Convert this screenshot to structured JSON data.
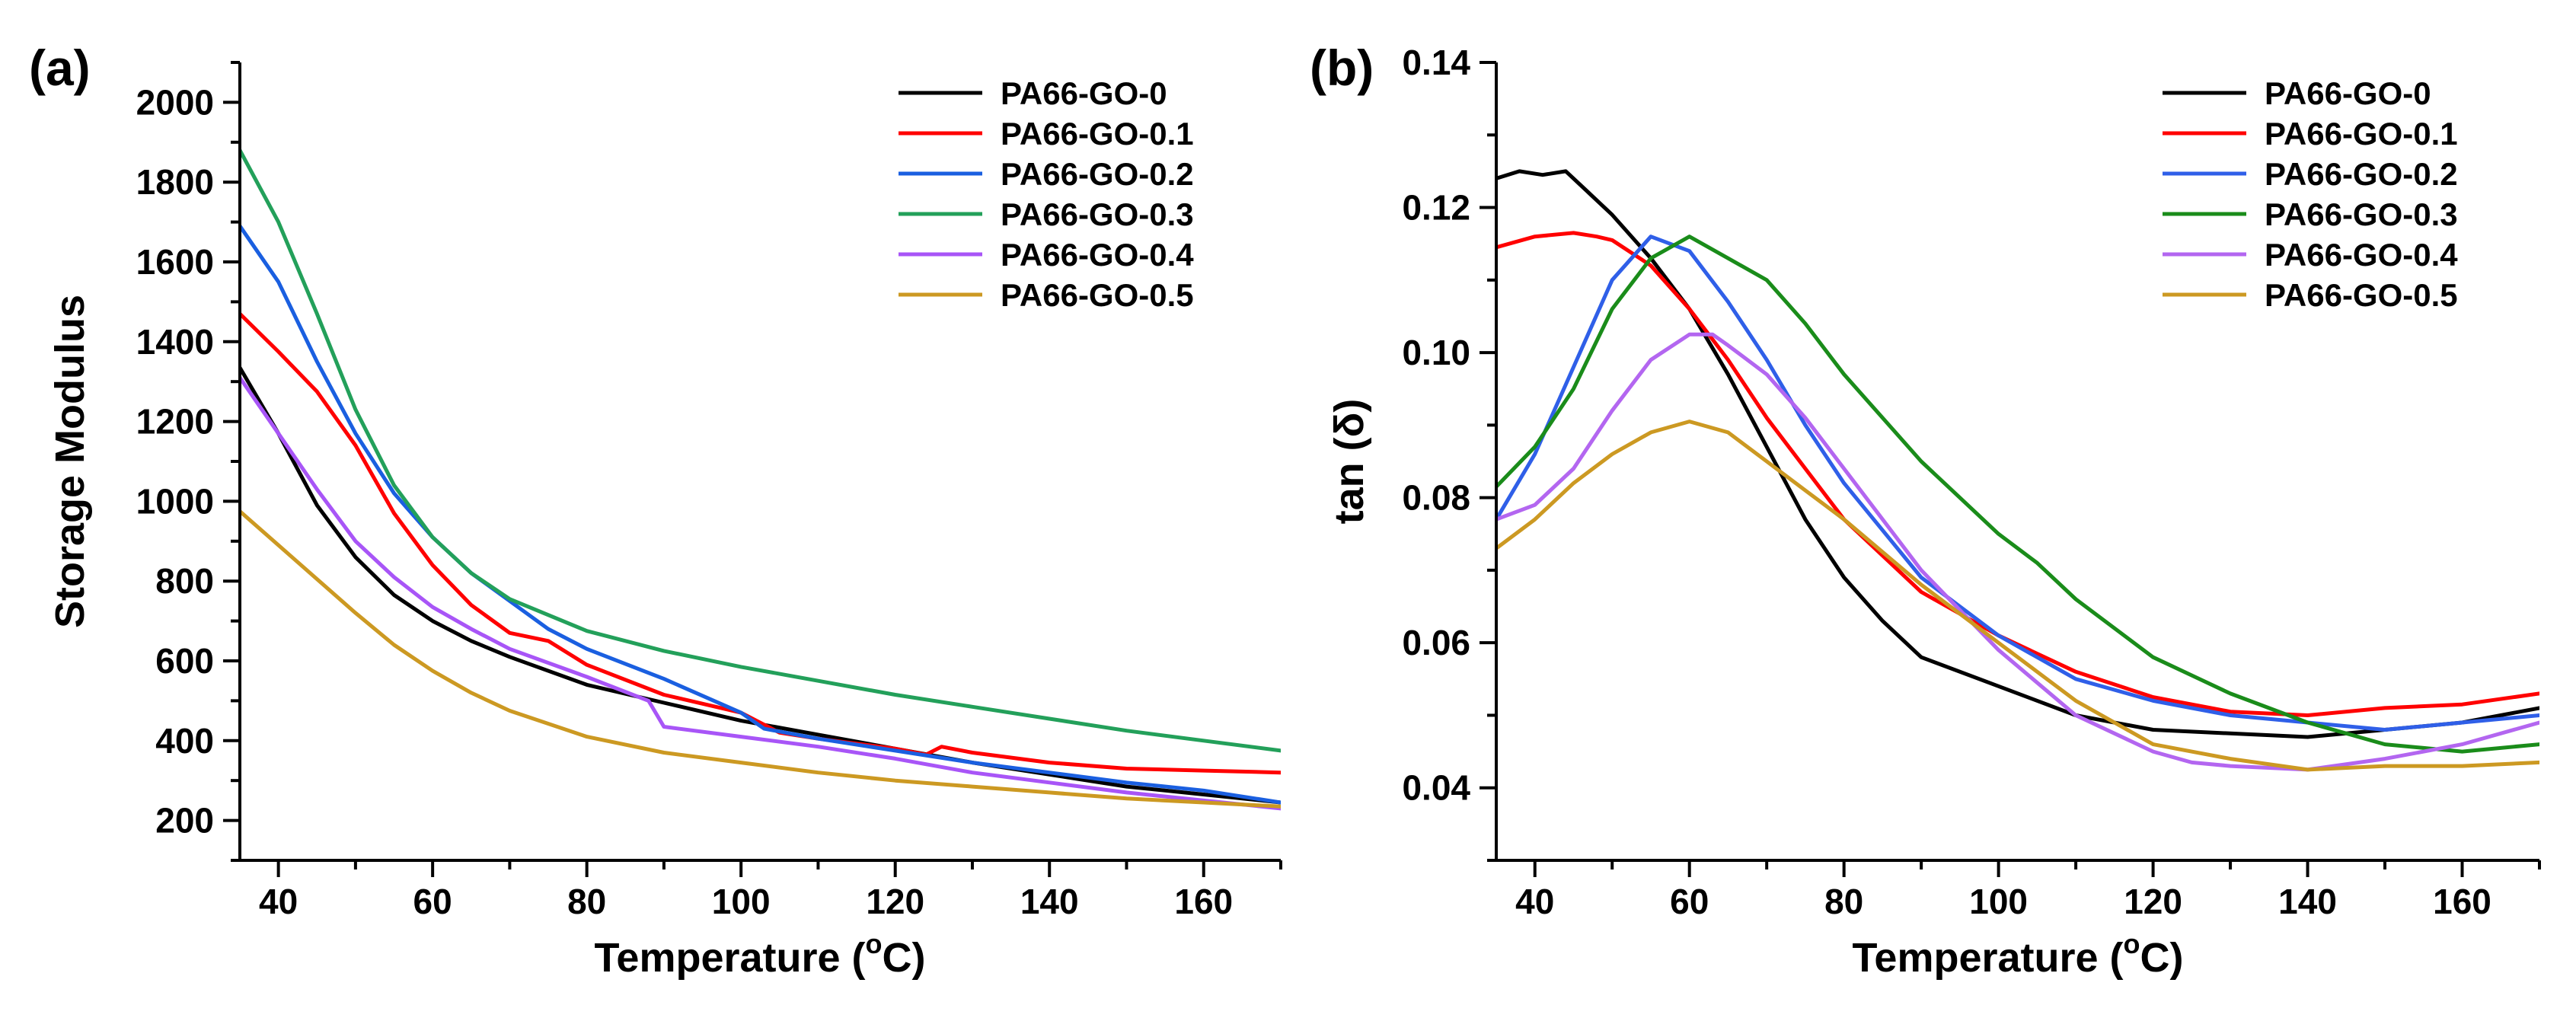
{
  "chart_data": [
    {
      "type": "line",
      "panel": "(a)",
      "xlabel": "Temperature (oC)",
      "xlabel_main": "Temperature (",
      "xlabel_sup": "o",
      "xlabel_end": "C)",
      "ylabel": "Storage Modulus",
      "xlim": [
        35,
        170
      ],
      "ylim": [
        100,
        2100
      ],
      "xticks": [
        40,
        60,
        80,
        100,
        120,
        140,
        160
      ],
      "yticks": [
        200,
        400,
        600,
        800,
        1000,
        1200,
        1400,
        1600,
        1800,
        2000
      ],
      "legend_position": "top-right",
      "series": [
        {
          "name": "PA66-GO-0",
          "color": "#000000",
          "x": [
            35,
            40,
            45,
            50,
            55,
            60,
            65,
            70,
            80,
            90,
            100,
            110,
            120,
            130,
            140,
            150,
            160,
            170
          ],
          "y": [
            1335,
            1170,
            990,
            860,
            765,
            700,
            650,
            610,
            540,
            495,
            450,
            415,
            380,
            345,
            315,
            285,
            265,
            245
          ]
        },
        {
          "name": "PA66-GO-0.1",
          "color": "#ff0000",
          "x": [
            35,
            40,
            45,
            50,
            55,
            60,
            65,
            70,
            75,
            80,
            90,
            100,
            105,
            110,
            120,
            124,
            126,
            130,
            140,
            150,
            160,
            170
          ],
          "y": [
            1470,
            1375,
            1275,
            1140,
            970,
            840,
            740,
            670,
            650,
            590,
            515,
            470,
            420,
            405,
            380,
            365,
            385,
            370,
            345,
            330,
            325,
            320
          ]
        },
        {
          "name": "PA66-GO-0.2",
          "color": "#1a5fe0",
          "x": [
            35,
            40,
            45,
            50,
            55,
            60,
            65,
            70,
            75,
            80,
            90,
            100,
            103,
            110,
            120,
            130,
            140,
            150,
            160,
            170
          ],
          "y": [
            1690,
            1550,
            1350,
            1170,
            1020,
            910,
            820,
            750,
            680,
            630,
            555,
            470,
            430,
            405,
            375,
            345,
            320,
            295,
            275,
            245
          ]
        },
        {
          "name": "PA66-GO-0.3",
          "color": "#23a05a",
          "x": [
            35,
            40,
            45,
            50,
            55,
            60,
            65,
            70,
            80,
            90,
            100,
            110,
            120,
            130,
            140,
            150,
            160,
            170
          ],
          "y": [
            1880,
            1700,
            1470,
            1230,
            1040,
            910,
            820,
            755,
            675,
            625,
            585,
            550,
            515,
            485,
            455,
            425,
            400,
            375
          ]
        },
        {
          "name": "PA66-GO-0.4",
          "color": "#a855f7",
          "x": [
            35,
            40,
            45,
            50,
            55,
            60,
            65,
            70,
            80,
            88,
            90,
            100,
            110,
            120,
            130,
            140,
            150,
            160,
            170
          ],
          "y": [
            1310,
            1170,
            1030,
            900,
            810,
            735,
            680,
            630,
            560,
            500,
            435,
            410,
            385,
            355,
            320,
            295,
            270,
            250,
            230
          ]
        },
        {
          "name": "PA66-GO-0.5",
          "color": "#cc9922",
          "x": [
            35,
            40,
            45,
            50,
            55,
            60,
            65,
            70,
            80,
            90,
            100,
            110,
            120,
            130,
            140,
            150,
            160,
            170
          ],
          "y": [
            975,
            890,
            805,
            720,
            640,
            575,
            520,
            475,
            410,
            370,
            345,
            320,
            300,
            285,
            270,
            255,
            245,
            235
          ]
        }
      ]
    },
    {
      "type": "line",
      "panel": "(b)",
      "xlabel": "Temperature (oC)",
      "xlabel_main": "Temperature (",
      "xlabel_sup": "o",
      "xlabel_end": "C)",
      "ylabel": "tan (δ)",
      "xlim": [
        35,
        170
      ],
      "ylim": [
        0.03,
        0.14
      ],
      "xticks": [
        40,
        60,
        80,
        100,
        120,
        140,
        160
      ],
      "yticks": [
        0.04,
        0.06,
        0.08,
        0.1,
        0.12,
        0.14
      ],
      "ytick_labels": [
        "0.04",
        "0.06",
        "0.08",
        "0.10",
        "0.12",
        "0.14"
      ],
      "legend_position": "top-right",
      "series": [
        {
          "name": "PA66-GO-0",
          "color": "#000000",
          "x": [
            35,
            38,
            41,
            44,
            47,
            50,
            55,
            60,
            65,
            70,
            75,
            80,
            85,
            90,
            100,
            110,
            120,
            130,
            140,
            150,
            160,
            170
          ],
          "y": [
            0.124,
            0.125,
            0.1245,
            0.125,
            0.122,
            0.119,
            0.113,
            0.106,
            0.097,
            0.087,
            0.077,
            0.069,
            0.063,
            0.058,
            0.054,
            0.05,
            0.048,
            0.0475,
            0.047,
            0.048,
            0.049,
            0.051
          ]
        },
        {
          "name": "PA66-GO-0.1",
          "color": "#ff0000",
          "x": [
            35,
            40,
            45,
            48,
            50,
            55,
            60,
            65,
            70,
            75,
            80,
            90,
            100,
            110,
            120,
            130,
            140,
            150,
            160,
            170
          ],
          "y": [
            0.1145,
            0.116,
            0.1165,
            0.116,
            0.1155,
            0.112,
            0.106,
            0.099,
            0.091,
            0.084,
            0.077,
            0.067,
            0.061,
            0.056,
            0.0525,
            0.0505,
            0.05,
            0.051,
            0.0515,
            0.053
          ]
        },
        {
          "name": "PA66-GO-0.2",
          "color": "#2f5fe8",
          "x": [
            35,
            40,
            45,
            50,
            55,
            60,
            65,
            70,
            75,
            80,
            90,
            100,
            110,
            120,
            130,
            140,
            150,
            160,
            170
          ],
          "y": [
            0.077,
            0.086,
            0.098,
            0.11,
            0.116,
            0.114,
            0.107,
            0.099,
            0.09,
            0.082,
            0.069,
            0.061,
            0.055,
            0.052,
            0.05,
            0.049,
            0.048,
            0.049,
            0.05
          ]
        },
        {
          "name": "PA66-GO-0.3",
          "color": "#1a8c1a",
          "x": [
            35,
            40,
            45,
            50,
            55,
            60,
            65,
            70,
            75,
            80,
            90,
            100,
            105,
            110,
            120,
            130,
            140,
            150,
            160,
            170
          ],
          "y": [
            0.0815,
            0.087,
            0.095,
            0.106,
            0.113,
            0.116,
            0.113,
            0.11,
            0.104,
            0.097,
            0.085,
            0.075,
            0.071,
            0.066,
            0.058,
            0.053,
            0.049,
            0.046,
            0.045,
            0.046
          ]
        },
        {
          "name": "PA66-GO-0.4",
          "color": "#b366f0",
          "x": [
            35,
            40,
            45,
            50,
            55,
            60,
            63,
            65,
            70,
            75,
            80,
            90,
            100,
            110,
            120,
            125,
            130,
            140,
            150,
            160,
            170
          ],
          "y": [
            0.077,
            0.079,
            0.084,
            0.092,
            0.099,
            0.1025,
            0.1025,
            0.101,
            0.097,
            0.091,
            0.084,
            0.07,
            0.059,
            0.05,
            0.045,
            0.0435,
            0.043,
            0.0425,
            0.044,
            0.046,
            0.049
          ]
        },
        {
          "name": "PA66-GO-0.5",
          "color": "#cc9922",
          "x": [
            35,
            40,
            45,
            50,
            55,
            60,
            65,
            70,
            75,
            80,
            90,
            100,
            110,
            120,
            130,
            140,
            150,
            160,
            170
          ],
          "y": [
            0.073,
            0.077,
            0.082,
            0.086,
            0.089,
            0.0905,
            0.089,
            0.085,
            0.081,
            0.077,
            0.068,
            0.06,
            0.052,
            0.046,
            0.044,
            0.0425,
            0.043,
            0.043,
            0.0435
          ]
        }
      ]
    }
  ]
}
